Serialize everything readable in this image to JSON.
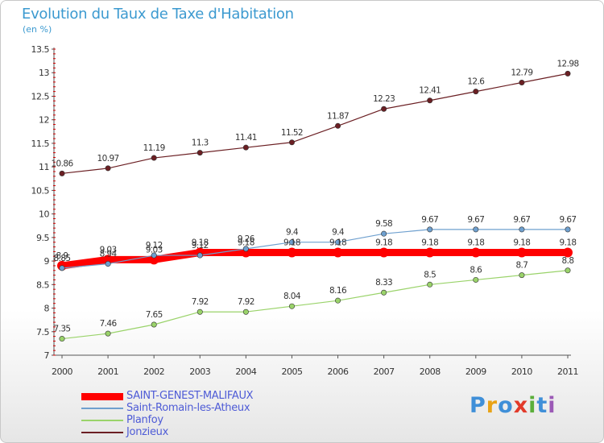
{
  "header": {
    "title": "Evolution du Taux de Taxe d'Habitation",
    "subtitle": "(en %)"
  },
  "logo": {
    "text": "ProXiti",
    "letters": [
      "P",
      "r",
      "o",
      "x",
      "i",
      "t",
      "i"
    ],
    "colors": [
      "#3f8fd8",
      "#e8a317",
      "#3f8fd8",
      "#e23a2a",
      "#5aae3a",
      "#3f8fd8",
      "#9b59b6"
    ]
  },
  "chart_data": {
    "type": "line",
    "categories": [
      "2000",
      "2001",
      "2002",
      "2003",
      "2004",
      "2005",
      "2006",
      "2007",
      "2008",
      "2009",
      "2010",
      "2011"
    ],
    "ylim": [
      7,
      13.5
    ],
    "yticks": [
      "7",
      "7.5",
      "8",
      "8.5",
      "9",
      "9.5",
      "10",
      "10.5",
      "11",
      "11.5",
      "12",
      "12.5",
      "13",
      "13.5"
    ],
    "grid": false,
    "legend_position": "bottom-left",
    "series": [
      {
        "name": "SAINT-GENEST-MALIFAUX",
        "color": "#ff0000",
        "values": [
          8.9,
          9.03,
          9.03,
          9.18,
          9.18,
          9.18,
          9.18,
          9.18,
          9.18,
          9.18,
          9.18,
          9.18
        ],
        "labels": [
          "8.9",
          "9.03",
          "9.03",
          "9.18",
          "9.18",
          "9.18",
          "9.18",
          "9.18",
          "9.18",
          "9.18",
          "9.18",
          "9.18"
        ]
      },
      {
        "name": "Saint-Romain-les-Atheux",
        "color": "#6fa0cf",
        "values": [
          8.85,
          8.94,
          9.12,
          9.12,
          9.26,
          9.4,
          9.4,
          9.58,
          9.67,
          9.67,
          9.67,
          9.67
        ],
        "labels": [
          "8.85",
          "8.94",
          "9.12",
          "9.12",
          "9.26",
          "9.4",
          "9.4",
          "9.58",
          "9.67",
          "9.67",
          "9.67",
          "9.67"
        ]
      },
      {
        "name": "Planfoy",
        "color": "#9ad36a",
        "values": [
          7.35,
          7.46,
          7.65,
          7.92,
          7.92,
          8.04,
          8.16,
          8.33,
          8.5,
          8.6,
          8.7,
          8.8
        ],
        "labels": [
          "7.35",
          "7.46",
          "7.65",
          "7.92",
          "7.92",
          "8.04",
          "8.16",
          "8.33",
          "8.5",
          "8.6",
          "8.7",
          "8.8"
        ]
      },
      {
        "name": "Jonzieux",
        "color": "#6b1f23",
        "values": [
          10.86,
          10.97,
          11.19,
          11.3,
          11.41,
          11.52,
          11.87,
          12.23,
          12.41,
          12.6,
          12.79,
          12.98
        ],
        "labels": [
          "10.86",
          "10.97",
          "11.19",
          "11.3",
          "11.41",
          "11.52",
          "11.87",
          "12.23",
          "12.41",
          "12.6",
          "12.79",
          "12.98"
        ]
      }
    ]
  }
}
